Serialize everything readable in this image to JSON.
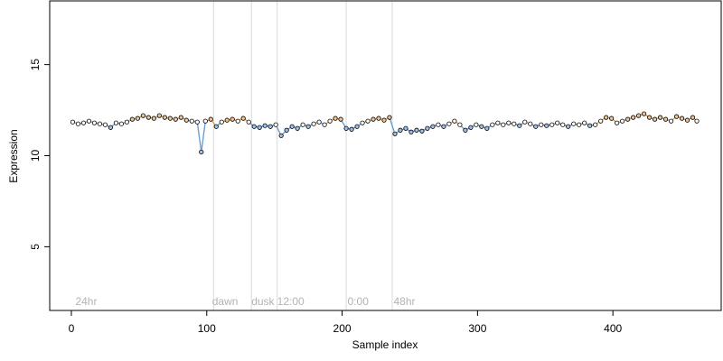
{
  "chart_data": {
    "type": "scatter",
    "title": "",
    "xlabel": "Sample index",
    "ylabel": "Expression",
    "xlim": [
      -16,
      480
    ],
    "ylim": [
      1.5,
      18.5
    ],
    "x_ticks": [
      0,
      100,
      200,
      300,
      400
    ],
    "y_ticks": [
      5,
      10,
      15
    ],
    "grid": false,
    "legend": "none",
    "annotations": [
      {
        "text": "24hr",
        "x": 3
      },
      {
        "text": "dawn",
        "x": 104
      },
      {
        "text": "dusk",
        "x": 133
      },
      {
        "text": "12:00",
        "x": 152
      },
      {
        "text": "0:00",
        "x": 204
      },
      {
        "text": "48hr",
        "x": 238
      }
    ],
    "vlines": [
      105,
      133,
      152,
      203,
      237
    ],
    "colors": {
      "point_edge": "#000000",
      "point_fill_warm": "#f2c48f",
      "point_fill_cool": "#9fbfe6",
      "point_fill_neutral": "#ffffff",
      "trend_warm": "#e8a04c",
      "trend_cool": "#6b9ed6",
      "vline": "#d9d9d9",
      "annotation": "#b3b3b3"
    },
    "series": [
      {
        "points": [
          [
            1,
            11.85
          ],
          [
            5,
            11.75
          ],
          [
            9,
            11.8
          ],
          [
            13,
            11.9
          ],
          [
            17,
            11.8
          ],
          [
            21,
            11.75
          ],
          [
            25,
            11.7
          ],
          [
            29,
            11.55
          ],
          [
            33,
            11.8
          ],
          [
            37,
            11.75
          ],
          [
            41,
            11.85
          ],
          [
            45,
            12.0
          ],
          [
            49,
            12.05
          ],
          [
            53,
            12.2
          ],
          [
            57,
            12.1
          ],
          [
            61,
            12.05
          ],
          [
            65,
            12.2
          ],
          [
            69,
            12.1
          ],
          [
            73,
            12.05
          ],
          [
            77,
            12.0
          ],
          [
            81,
            12.1
          ],
          [
            85,
            11.95
          ],
          [
            89,
            11.9
          ],
          [
            93,
            11.85
          ],
          [
            96,
            10.2
          ],
          [
            99,
            11.9
          ],
          [
            103,
            12.0
          ],
          [
            107,
            11.6
          ],
          [
            111,
            11.85
          ],
          [
            115,
            11.95
          ],
          [
            119,
            12.0
          ],
          [
            123,
            11.9
          ],
          [
            127,
            12.05
          ],
          [
            131,
            11.85
          ],
          [
            135,
            11.6
          ],
          [
            139,
            11.55
          ],
          [
            143,
            11.65
          ],
          [
            147,
            11.6
          ],
          [
            151,
            11.7
          ],
          [
            155,
            11.1
          ],
          [
            159,
            11.4
          ],
          [
            163,
            11.6
          ],
          [
            167,
            11.5
          ],
          [
            171,
            11.7
          ],
          [
            175,
            11.6
          ],
          [
            179,
            11.75
          ],
          [
            183,
            11.85
          ],
          [
            187,
            11.7
          ],
          [
            191,
            11.9
          ],
          [
            195,
            12.05
          ],
          [
            199,
            12.0
          ],
          [
            203,
            11.5
          ],
          [
            207,
            11.45
          ],
          [
            211,
            11.6
          ],
          [
            215,
            11.8
          ],
          [
            219,
            11.9
          ],
          [
            223,
            12.0
          ],
          [
            227,
            12.05
          ],
          [
            231,
            11.95
          ],
          [
            235,
            12.1
          ],
          [
            239,
            11.2
          ],
          [
            243,
            11.4
          ],
          [
            247,
            11.5
          ],
          [
            251,
            11.3
          ],
          [
            255,
            11.4
          ],
          [
            259,
            11.35
          ],
          [
            263,
            11.5
          ],
          [
            267,
            11.6
          ],
          [
            271,
            11.7
          ],
          [
            275,
            11.6
          ],
          [
            279,
            11.75
          ],
          [
            283,
            11.9
          ],
          [
            287,
            11.7
          ],
          [
            291,
            11.4
          ],
          [
            295,
            11.55
          ],
          [
            299,
            11.7
          ],
          [
            303,
            11.6
          ],
          [
            307,
            11.5
          ],
          [
            311,
            11.7
          ],
          [
            315,
            11.8
          ],
          [
            319,
            11.7
          ],
          [
            323,
            11.8
          ],
          [
            327,
            11.75
          ],
          [
            331,
            11.65
          ],
          [
            335,
            11.85
          ],
          [
            339,
            11.75
          ],
          [
            343,
            11.6
          ],
          [
            347,
            11.7
          ],
          [
            351,
            11.65
          ],
          [
            355,
            11.7
          ],
          [
            359,
            11.8
          ],
          [
            363,
            11.7
          ],
          [
            367,
            11.6
          ],
          [
            371,
            11.75
          ],
          [
            375,
            11.7
          ],
          [
            379,
            11.8
          ],
          [
            383,
            11.65
          ],
          [
            387,
            11.7
          ],
          [
            391,
            11.9
          ],
          [
            395,
            12.1
          ],
          [
            399,
            12.05
          ],
          [
            403,
            11.8
          ],
          [
            407,
            11.9
          ],
          [
            411,
            12.0
          ],
          [
            415,
            12.1
          ],
          [
            419,
            12.2
          ],
          [
            423,
            12.3
          ],
          [
            427,
            12.1
          ],
          [
            431,
            12.0
          ],
          [
            435,
            12.1
          ],
          [
            439,
            12.0
          ],
          [
            443,
            11.9
          ],
          [
            447,
            12.15
          ],
          [
            451,
            12.05
          ],
          [
            455,
            11.95
          ],
          [
            459,
            12.1
          ],
          [
            462,
            11.9
          ]
        ]
      }
    ]
  }
}
